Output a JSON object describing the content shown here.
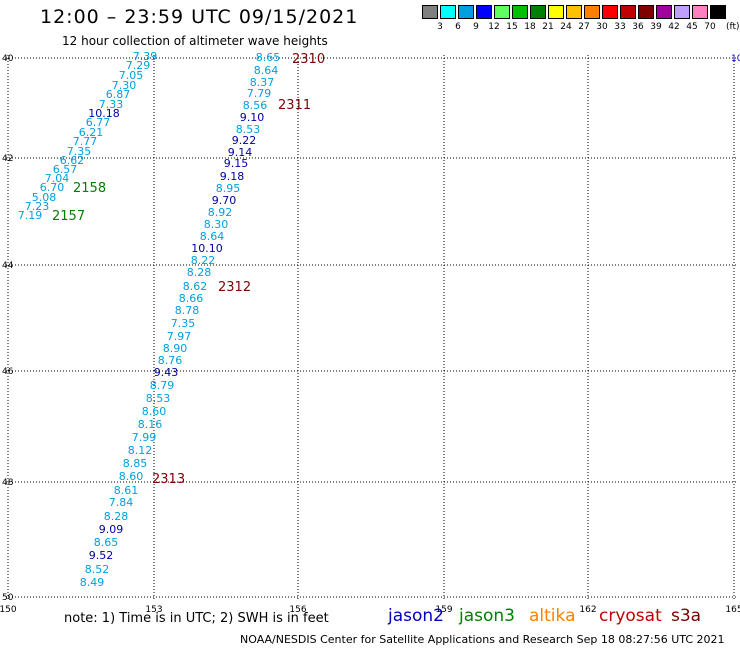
{
  "header": {
    "title": "12:00 – 23:59 UTC 09/15/2021",
    "subtitle": "12 hour collection of altimeter wave heights"
  },
  "legend": {
    "colors": [
      "#808080",
      "#00ffff",
      "#00a0e0",
      "#0000ff",
      "#60ff60",
      "#00c000",
      "#008000",
      "#ffff00",
      "#ffc000",
      "#ff8000",
      "#ff0000",
      "#c00000",
      "#800000",
      "#a000a0",
      "#c0a0ff",
      "#ff80c0",
      "#000000"
    ],
    "labels": [
      "3",
      "6",
      "9",
      "12",
      "15",
      "18",
      "21",
      "24",
      "27",
      "30",
      "33",
      "36",
      "39",
      "42",
      "45",
      "70"
    ],
    "unit": "(ft)"
  },
  "axes": {
    "x_labels": [
      "150",
      "153",
      "156",
      "159",
      "162",
      "165"
    ],
    "y_labels": [
      "40",
      "42",
      "44",
      "46",
      "48",
      "50"
    ],
    "right_label": "10"
  },
  "wave_heights": [
    {
      "text": "7.39",
      "color": "#00a0e0"
    },
    {
      "text": "7.29",
      "color": "#00a0e0"
    },
    {
      "text": "7.05",
      "color": "#00a0e0"
    },
    {
      "text": "7.30",
      "color": "#00a0e0"
    },
    {
      "text": "6.87",
      "color": "#00a0e0"
    },
    {
      "text": "7.33",
      "color": "#00a0e0"
    },
    {
      "text": "10.18",
      "color": "#0000a0"
    },
    {
      "text": "6.77",
      "color": "#00a0e0"
    },
    {
      "text": "6.21",
      "color": "#00a0e0"
    },
    {
      "text": "7.77",
      "color": "#00a0e0"
    },
    {
      "text": "7.35",
      "color": "#00a0e0"
    },
    {
      "text": "6.62",
      "color": "#00a0e0"
    },
    {
      "text": "6.57",
      "color": "#00a0e0"
    },
    {
      "text": "7.04",
      "color": "#00a0e0"
    },
    {
      "text": "6.70",
      "color": "#00a0e0"
    },
    {
      "text": "5.08",
      "color": "#00a0e0"
    },
    {
      "text": "7.23",
      "color": "#00a0e0"
    },
    {
      "text": "7.19",
      "color": "#00a0e0"
    },
    {
      "text": "8.65",
      "color": "#00a0e0"
    },
    {
      "text": "8.64",
      "color": "#00a0e0"
    },
    {
      "text": "8.37",
      "color": "#00a0e0"
    },
    {
      "text": "7.79",
      "color": "#00a0e0"
    },
    {
      "text": "8.56",
      "color": "#00a0e0"
    },
    {
      "text": "9.10",
      "color": "#0000a0"
    },
    {
      "text": "8.53",
      "color": "#00a0e0"
    },
    {
      "text": "9.22",
      "color": "#0000a0"
    },
    {
      "text": "9.14",
      "color": "#0000a0"
    },
    {
      "text": "9.15",
      "color": "#0000a0"
    },
    {
      "text": "9.18",
      "color": "#0000a0"
    },
    {
      "text": "8.95",
      "color": "#00a0e0"
    },
    {
      "text": "9.70",
      "color": "#0000a0"
    },
    {
      "text": "8.92",
      "color": "#00a0e0"
    },
    {
      "text": "8.30",
      "color": "#00a0e0"
    },
    {
      "text": "8.64",
      "color": "#00a0e0"
    },
    {
      "text": "10.10",
      "color": "#0000a0"
    },
    {
      "text": "8.22",
      "color": "#00a0e0"
    },
    {
      "text": "8.28",
      "color": "#00a0e0"
    },
    {
      "text": "8.62",
      "color": "#00a0e0"
    },
    {
      "text": "8.66",
      "color": "#00a0e0"
    },
    {
      "text": "8.78",
      "color": "#00a0e0"
    },
    {
      "text": "7.35",
      "color": "#00a0e0"
    },
    {
      "text": "7.97",
      "color": "#00a0e0"
    },
    {
      "text": "8.90",
      "color": "#00a0e0"
    },
    {
      "text": "8.76",
      "color": "#00a0e0"
    },
    {
      "text": "9.43",
      "color": "#0000a0"
    },
    {
      "text": "8.79",
      "color": "#00a0e0"
    },
    {
      "text": "8.53",
      "color": "#00a0e0"
    },
    {
      "text": "8.60",
      "color": "#00a0e0"
    },
    {
      "text": "8.16",
      "color": "#00a0e0"
    },
    {
      "text": "7.99",
      "color": "#00a0e0"
    },
    {
      "text": "8.12",
      "color": "#00a0e0"
    },
    {
      "text": "8.85",
      "color": "#00a0e0"
    },
    {
      "text": "8.60",
      "color": "#00a0e0"
    },
    {
      "text": "8.61",
      "color": "#00a0e0"
    },
    {
      "text": "7.84",
      "color": "#00a0e0"
    },
    {
      "text": "8.28",
      "color": "#00a0e0"
    },
    {
      "text": "9.09",
      "color": "#0000a0"
    },
    {
      "text": "8.65",
      "color": "#00a0e0"
    },
    {
      "text": "9.52",
      "color": "#0000a0"
    },
    {
      "text": "8.52",
      "color": "#00a0e0"
    },
    {
      "text": "8.49",
      "color": "#00a0e0"
    }
  ],
  "pass_times": [
    {
      "text": "2310",
      "color": "#800000"
    },
    {
      "text": "2311",
      "color": "#800000"
    },
    {
      "text": "2312",
      "color": "#800000"
    },
    {
      "text": "2313",
      "color": "#800000"
    },
    {
      "text": "2158",
      "color": "#008000"
    },
    {
      "text": "2157",
      "color": "#008000"
    }
  ],
  "footer": {
    "note": "note:  1) Time is in UTC;  2) SWH is in feet",
    "satellites": [
      {
        "name": "jason2",
        "color": "#0000c0"
      },
      {
        "name": "jason3",
        "color": "#008000"
      },
      {
        "name": "altika",
        "color": "#ff8000"
      },
      {
        "name": "cryosat",
        "color": "#c00000"
      },
      {
        "name": "s3a",
        "color": "#800000"
      }
    ],
    "credit": "NOAA/NESDIS Center for Satellite Applications and Research     Sep 18 08:27:56 UTC 2021"
  }
}
